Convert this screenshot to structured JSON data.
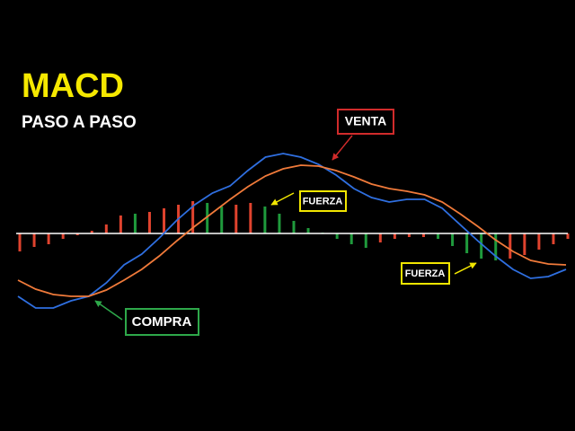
{
  "chart_data": {
    "type": "macd",
    "title": "MACD",
    "subtitle": "PASO A PASO",
    "ylim": [
      -100,
      100
    ],
    "histogram": {
      "values": [
        -20,
        -15,
        -12,
        -6,
        -2,
        3,
        10,
        20,
        22,
        24,
        28,
        32,
        36,
        34,
        30,
        32,
        34,
        30,
        22,
        14,
        6,
        1,
        -6,
        -12,
        -16,
        -10,
        -6,
        -4,
        -4,
        -6,
        -14,
        -22,
        -28,
        -30,
        -28,
        -24,
        -18,
        -12,
        -6
      ],
      "colors": [
        "#e0432e",
        "#e0432e",
        "#e0432e",
        "#e0432e",
        "#e0432e",
        "#e0432e",
        "#e0432e",
        "#e0432e",
        "#1f9a3c",
        "#e0432e",
        "#e0432e",
        "#e0432e",
        "#e0432e",
        "#1f9a3c",
        "#1f9a3c",
        "#e0432e",
        "#e0432e",
        "#1f9a3c",
        "#1f9a3c",
        "#1f9a3c",
        "#1f9a3c",
        "#1f9a3c",
        "#1f9a3c",
        "#1f9a3c",
        "#1f9a3c",
        "#e0432e",
        "#e0432e",
        "#e0432e",
        "#e0432e",
        "#1f9a3c",
        "#1f9a3c",
        "#1f9a3c",
        "#1f9a3c",
        "#1f9a3c",
        "#e0432e",
        "#e0432e",
        "#e0432e",
        "#e0432e",
        "#e0432e"
      ]
    },
    "series": [
      {
        "color": "#2f6fe0",
        "values": [
          -70,
          -83,
          -83,
          -75,
          -70,
          -55,
          -35,
          -23,
          -5,
          15,
          32,
          45,
          53,
          70,
          85,
          89,
          85,
          77,
          65,
          50,
          40,
          35,
          38,
          38,
          28,
          10,
          -8,
          -25,
          -40,
          -50,
          -48,
          -40
        ]
      },
      {
        "color": "#f07a3a",
        "values": [
          -52,
          -62,
          -68,
          -70,
          -70,
          -63,
          -52,
          -40,
          -25,
          -8,
          8,
          23,
          38,
          52,
          64,
          72,
          76,
          75,
          70,
          63,
          55,
          50,
          47,
          43,
          35,
          22,
          8,
          -7,
          -20,
          -30,
          -34,
          -35
        ]
      }
    ],
    "annotations": [
      "VENTA",
      "FUERZA",
      "FUERZA",
      "COMPRA"
    ]
  }
}
